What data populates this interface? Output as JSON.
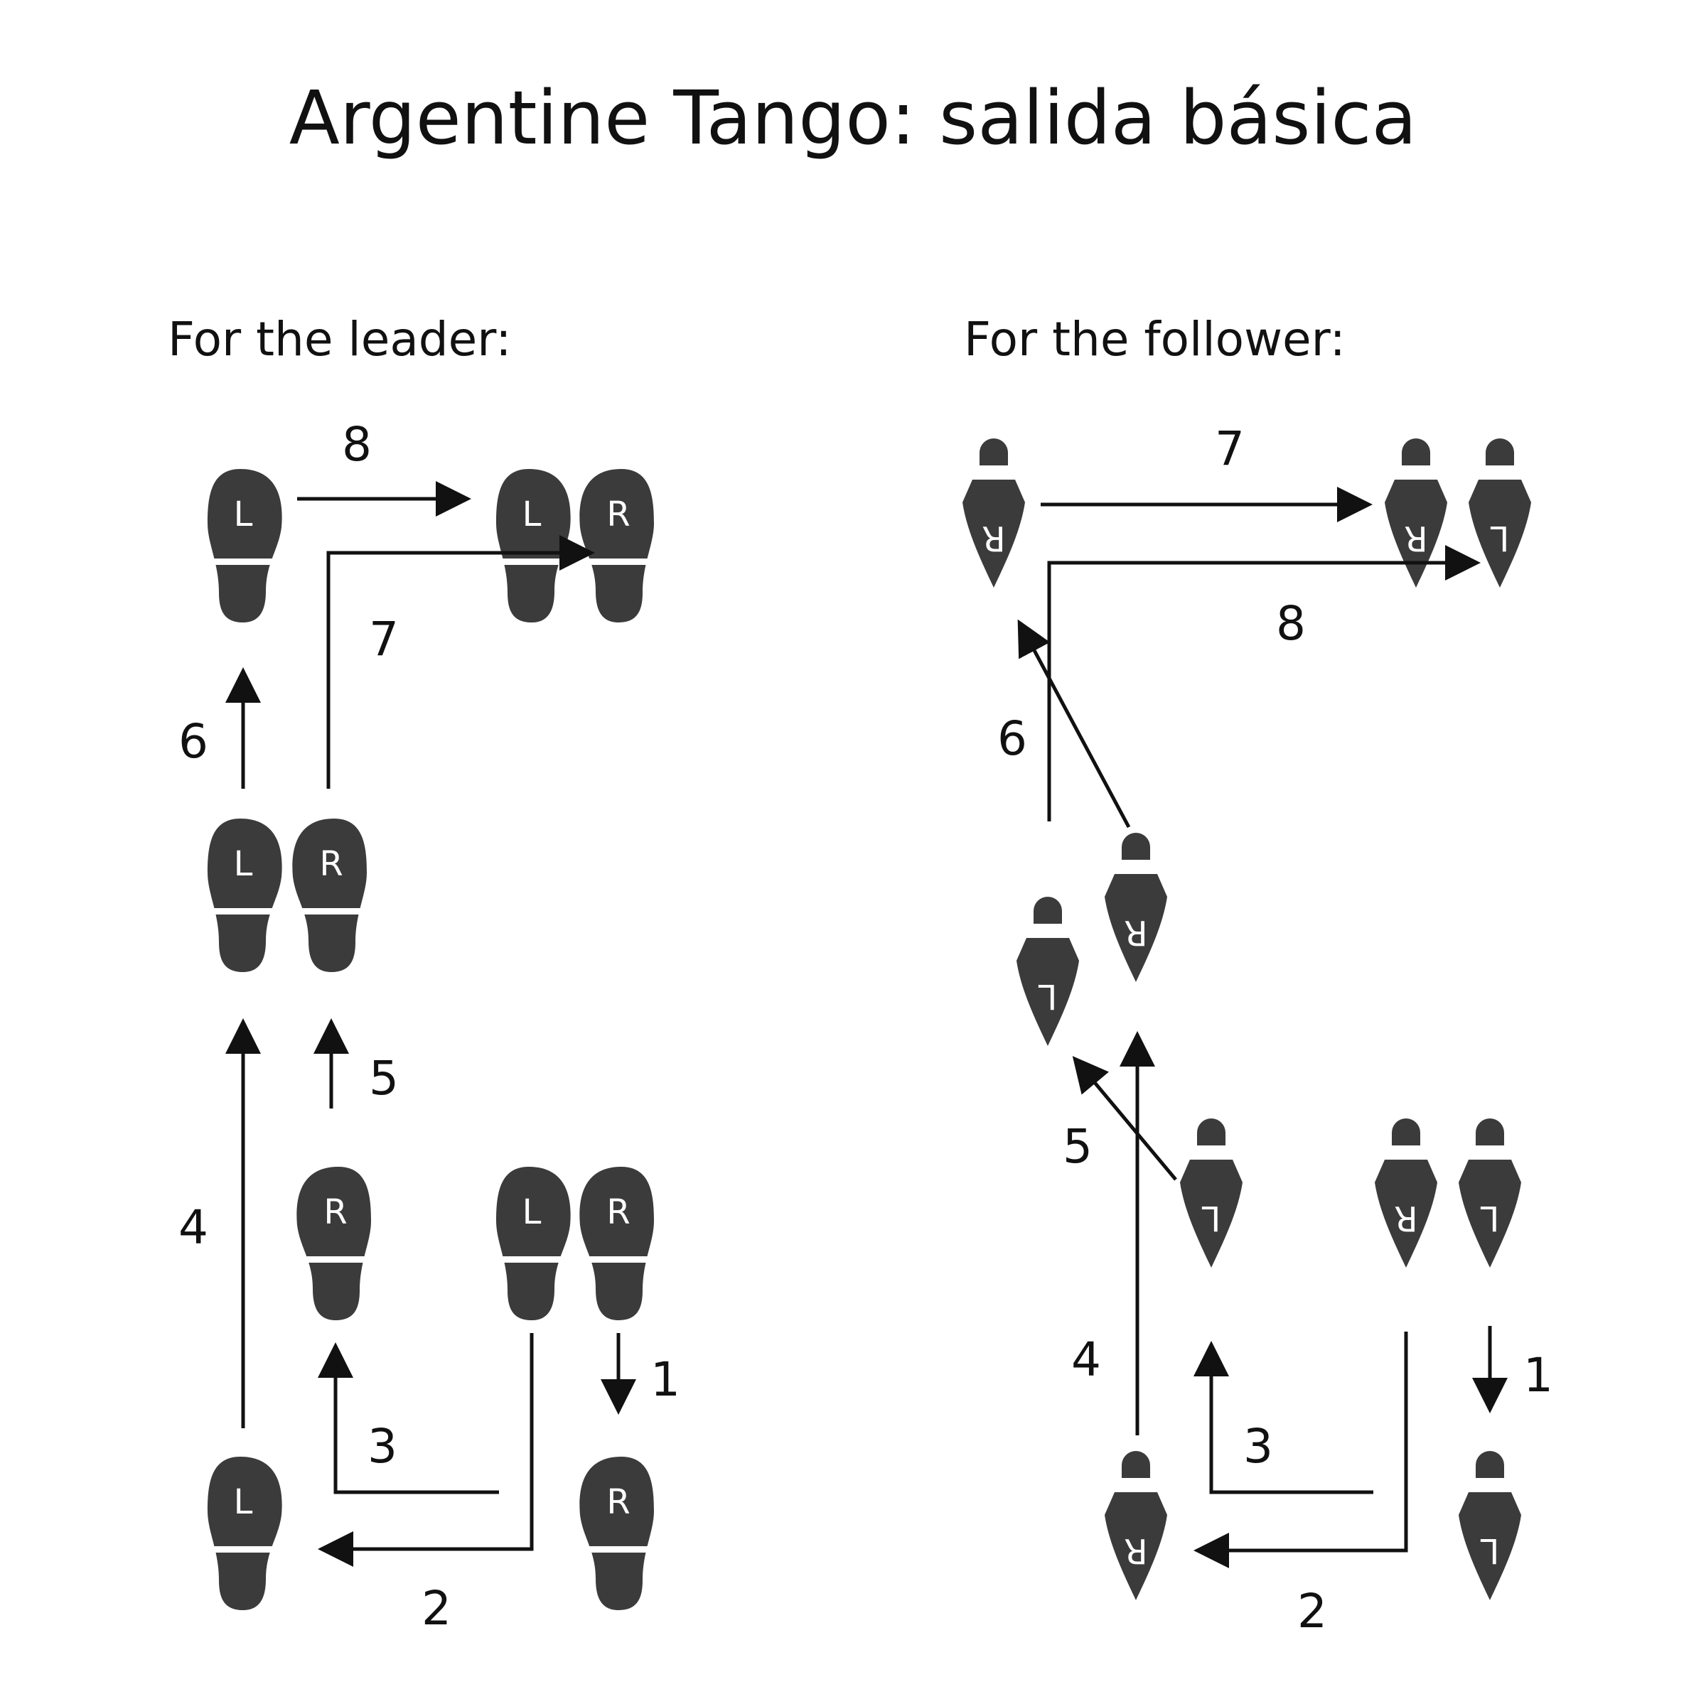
{
  "title": "Argentine Tango: salida básica",
  "leader": {
    "heading": "For the leader:",
    "shoes": [
      "L",
      "L",
      "R",
      "L",
      "R",
      "R",
      "L",
      "R",
      "L",
      "R"
    ],
    "step_numbers": [
      "1",
      "2",
      "3",
      "4",
      "5",
      "6",
      "7",
      "8"
    ]
  },
  "follower": {
    "heading": "For the follower:",
    "shoes": [
      "R",
      "R",
      "L",
      "L",
      "R",
      "L",
      "R",
      "L",
      "R",
      "L"
    ],
    "step_numbers": [
      "1",
      "2",
      "3",
      "4",
      "5",
      "6",
      "7",
      "8"
    ]
  },
  "colors": {
    "shoe": "#3b3b3b",
    "arrow": "#111111",
    "text": "#111111"
  }
}
